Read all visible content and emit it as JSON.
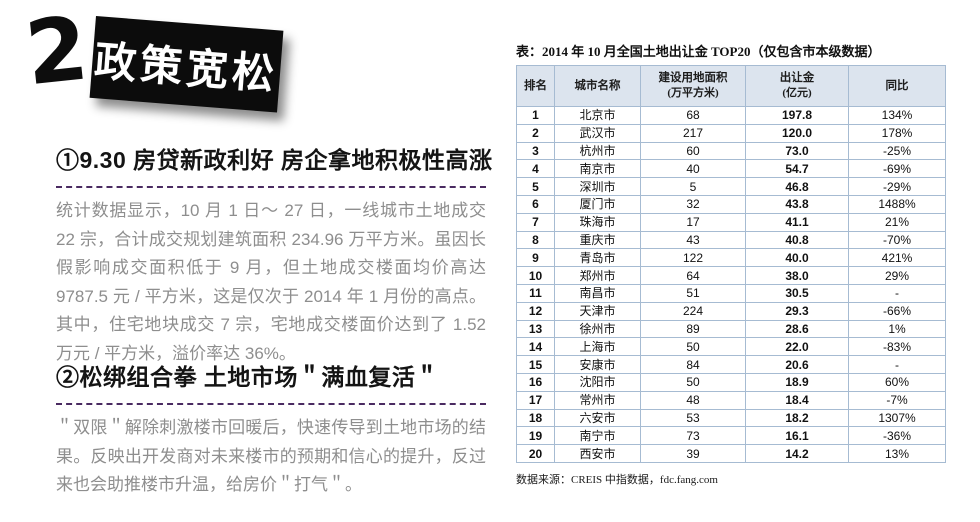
{
  "header": {
    "number": "2.",
    "banner_title": "政策宽松"
  },
  "sections": [
    {
      "heading": "①9.30 房贷新政利好 房企拿地积极性高涨",
      "body": "统计数据显示，10 月 1 日～ 27 日，一线城市土地成交 22 宗，合计成交规划建筑面积 234.96 万平方米。虽因长假影响成交面积低于 9 月，但土地成交楼面均价高达 9787.5 元 / 平方米，这是仅次于 2014 年 1 月份的高点。其中，住宅地块成交 7 宗，宅地成交楼面价达到了 1.52 万元 / 平方米，溢价率达 36%。"
    },
    {
      "heading": "②松绑组合拳 土地市场＂满血复活＂",
      "body": "＂双限＂解除刺激楼市回暖后，快速传导到土地市场的结果。反映出开发商对未来楼市的预期和信心的提升，反过来也会助推楼市升温，给房价＂打气＂。"
    }
  ],
  "table": {
    "title": "表：2014 年 10 月全国土地出让金 TOP20（仅包含市本级数据）",
    "columns": [
      {
        "label": "排名",
        "sub": ""
      },
      {
        "label": "城市名称",
        "sub": ""
      },
      {
        "label": "建设用地面积",
        "sub": "(万平方米)"
      },
      {
        "label": "出让金",
        "sub": "(亿元)"
      },
      {
        "label": "同比",
        "sub": ""
      }
    ],
    "rows": [
      {
        "rank": "1",
        "city": "北京市",
        "area": "68",
        "amount": "197.8",
        "yoy": "134%"
      },
      {
        "rank": "2",
        "city": "武汉市",
        "area": "217",
        "amount": "120.0",
        "yoy": "178%"
      },
      {
        "rank": "3",
        "city": "杭州市",
        "area": "60",
        "amount": "73.0",
        "yoy": "-25%"
      },
      {
        "rank": "4",
        "city": "南京市",
        "area": "40",
        "amount": "54.7",
        "yoy": "-69%"
      },
      {
        "rank": "5",
        "city": "深圳市",
        "area": "5",
        "amount": "46.8",
        "yoy": "-29%"
      },
      {
        "rank": "6",
        "city": "厦门市",
        "area": "32",
        "amount": "43.8",
        "yoy": "1488%"
      },
      {
        "rank": "7",
        "city": "珠海市",
        "area": "17",
        "amount": "41.1",
        "yoy": "21%"
      },
      {
        "rank": "8",
        "city": "重庆市",
        "area": "43",
        "amount": "40.8",
        "yoy": "-70%"
      },
      {
        "rank": "9",
        "city": "青岛市",
        "area": "122",
        "amount": "40.0",
        "yoy": "421%"
      },
      {
        "rank": "10",
        "city": "郑州市",
        "area": "64",
        "amount": "38.0",
        "yoy": "29%"
      },
      {
        "rank": "11",
        "city": "南昌市",
        "area": "51",
        "amount": "30.5",
        "yoy": "-"
      },
      {
        "rank": "12",
        "city": "天津市",
        "area": "224",
        "amount": "29.3",
        "yoy": "-66%"
      },
      {
        "rank": "13",
        "city": "徐州市",
        "area": "89",
        "amount": "28.6",
        "yoy": "1%"
      },
      {
        "rank": "14",
        "city": "上海市",
        "area": "50",
        "amount": "22.0",
        "yoy": "-83%"
      },
      {
        "rank": "15",
        "city": "安康市",
        "area": "84",
        "amount": "20.6",
        "yoy": "-"
      },
      {
        "rank": "16",
        "city": "沈阳市",
        "area": "50",
        "amount": "18.9",
        "yoy": "60%"
      },
      {
        "rank": "17",
        "city": "常州市",
        "area": "48",
        "amount": "18.4",
        "yoy": "-7%"
      },
      {
        "rank": "18",
        "city": "六安市",
        "area": "53",
        "amount": "18.2",
        "yoy": "1307%"
      },
      {
        "rank": "19",
        "city": "南宁市",
        "area": "73",
        "amount": "16.1",
        "yoy": "-36%"
      },
      {
        "rank": "20",
        "city": "西安市",
        "area": "39",
        "amount": "14.2",
        "yoy": "13%"
      }
    ],
    "source": "数据来源：CREIS 中指数据，fdc.fang.com"
  },
  "colors": {
    "accent-red": "#e0241b",
    "divider-purple": "#4a2a61",
    "table-header-bg": "#dce4ee",
    "table-border": "#a6bbd2",
    "body-gray": "#8e8e8e",
    "banner-black": "#0c0c0c"
  }
}
